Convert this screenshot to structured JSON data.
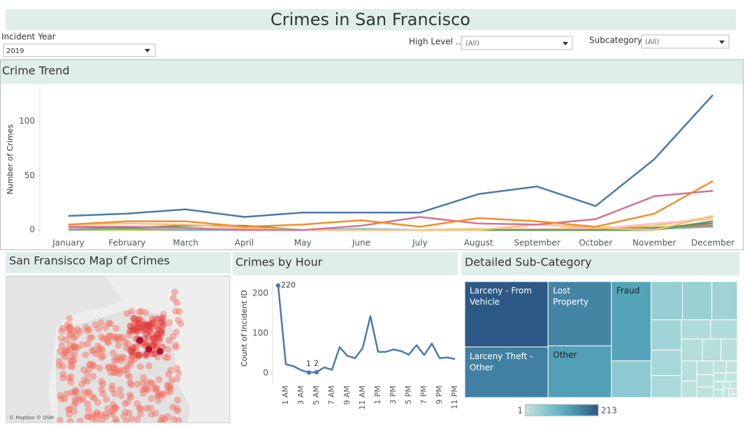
{
  "title": "Crimes in San Francisco",
  "filters": [
    {
      "label": "Incident Year",
      "value": "2019"
    },
    {
      "label": "High Level ..",
      "value": "(All)"
    },
    {
      "label": "Subcategory",
      "value": "(All)"
    }
  ],
  "chart_data": [
    {
      "type": "line",
      "title": "Crime Trend",
      "ylabel": "Number of Crimes",
      "categories": [
        "January",
        "February",
        "March",
        "April",
        "May",
        "June",
        "July",
        "August",
        "September",
        "October",
        "November",
        "December"
      ],
      "ylim": [
        -5,
        133
      ],
      "yticks": [
        0,
        50,
        100
      ],
      "series": [
        {
          "color": "#4e79a7",
          "values": [
            13,
            15,
            19,
            12,
            16,
            16,
            16,
            33,
            40,
            22,
            65,
            124
          ]
        },
        {
          "color": "#f28e2b",
          "values": [
            5,
            8,
            8,
            3,
            5,
            9,
            3,
            11,
            8,
            3,
            15,
            45
          ]
        },
        {
          "color": "#d37295",
          "values": [
            3,
            3,
            2,
            0,
            0,
            4,
            12,
            6,
            5,
            10,
            31,
            36
          ]
        },
        {
          "color": "#ffbe7d",
          "values": [
            5,
            6,
            5,
            2,
            0,
            0,
            0,
            0,
            5,
            2,
            0,
            13
          ]
        },
        {
          "color": "#59a14f",
          "values": [
            3,
            2,
            4,
            4,
            0,
            0,
            0,
            0,
            0,
            0,
            0,
            8
          ]
        },
        {
          "color": "#76b7b2",
          "values": [
            0,
            1,
            0,
            0,
            0,
            1,
            0,
            0,
            0,
            0,
            1,
            3
          ]
        },
        {
          "color": "#fabfd2",
          "values": [
            2,
            3,
            1,
            1,
            0,
            1,
            0,
            0,
            1,
            1,
            6,
            10
          ]
        },
        {
          "color": "#edc948",
          "values": [
            0,
            0,
            0,
            0,
            0,
            0,
            0,
            1,
            1,
            2,
            4,
            12
          ]
        },
        {
          "color": "#9c755f",
          "values": [
            1,
            1,
            0,
            0,
            0,
            0,
            0,
            0,
            0,
            1,
            2,
            6
          ]
        },
        {
          "color": "#e15759",
          "values": [
            1,
            1,
            1,
            0,
            0,
            0,
            0,
            1,
            1,
            0,
            1,
            4
          ]
        }
      ]
    },
    {
      "type": "map",
      "title": "San Fransisco Map of Crimes",
      "attribution": "© Mapbox © OSM"
    },
    {
      "type": "line",
      "title": "Crimes by Hour",
      "ylabel": "Count of Incident ID",
      "categories": [
        null,
        "1 AM",
        null,
        "3 AM",
        null,
        "5 AM",
        null,
        "7 AM",
        null,
        "9 AM",
        null,
        "11 AM",
        null,
        "1 PM",
        null,
        "3 PM",
        null,
        "5 PM",
        null,
        "7 PM",
        null,
        "9 PM",
        null,
        "11 PM"
      ],
      "ylim": [
        -25,
        230
      ],
      "yticks": [
        0,
        100,
        200
      ],
      "color": "#4e79a7",
      "values": [
        220,
        22,
        17,
        7,
        1,
        2,
        14,
        8,
        65,
        43,
        37,
        63,
        143,
        53,
        53,
        59,
        55,
        46,
        70,
        45,
        74,
        37,
        39,
        35
      ],
      "value_labels": [
        "220",
        null,
        null,
        null,
        "1",
        "2",
        null,
        null,
        null,
        null,
        null,
        null,
        null,
        null,
        null,
        null,
        null,
        null,
        null,
        null,
        null,
        null,
        null,
        null
      ]
    },
    {
      "type": "treemap",
      "title": "Detailed Sub-Category",
      "categories": [
        "Larceny - From Vehicle",
        "Larceny Theft - Other",
        "Lost Property",
        "Other",
        "Fraud",
        null,
        null,
        null,
        null,
        null,
        null,
        null,
        null,
        null,
        null,
        null,
        null,
        null,
        null,
        null,
        null,
        null,
        null,
        null,
        null,
        null,
        null,
        null,
        null,
        null,
        null,
        null,
        null,
        null
      ],
      "values": [
        213,
        165,
        159,
        128,
        123,
        57,
        47,
        44,
        38,
        36,
        30,
        26,
        22,
        20,
        18,
        16,
        14,
        12,
        10,
        9,
        8,
        7,
        6,
        5,
        4,
        4,
        3,
        3,
        2,
        2,
        2,
        1,
        1,
        1
      ],
      "color_scale": [
        "#c4e5e0",
        "#5bb0c2",
        "#2c5985"
      ],
      "color_range": [
        1,
        213
      ]
    }
  ]
}
